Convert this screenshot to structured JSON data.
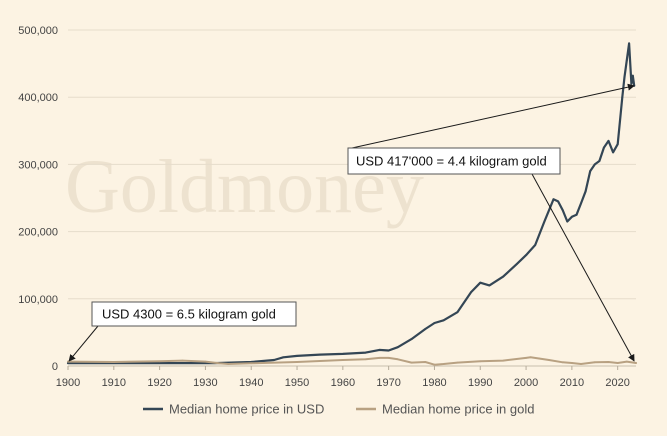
{
  "colors": {
    "background": "#fcf3e3",
    "grid": "#e6dccb",
    "usd_line": "#344655",
    "gold_line": "#b8a182",
    "arrow": "#1a1a1a"
  },
  "watermark": "Goldmoney",
  "chart_data": {
    "type": "line",
    "title": "",
    "xlabel": "",
    "ylabel": "",
    "xlim": [
      1900,
      2024
    ],
    "ylim": [
      0,
      500000
    ],
    "grid": true,
    "legend_position": "bottom",
    "x_ticks": [
      1900,
      1910,
      1920,
      1930,
      1940,
      1950,
      1960,
      1970,
      1980,
      1990,
      2000,
      2010,
      2020
    ],
    "x_tick_labels": [
      "1900",
      "1910",
      "1920",
      "1930",
      "1940",
      "1950",
      "1960",
      "1970",
      "1980",
      "1990",
      "2000",
      "2010",
      "2020"
    ],
    "y_ticks": [
      0,
      100000,
      200000,
      300000,
      400000,
      500000
    ],
    "y_tick_labels": [
      "0",
      "100,000",
      "200,000",
      "300,000",
      "400,000",
      "500,000"
    ],
    "series": [
      {
        "name": "Median home price in USD",
        "color": "#344655",
        "x": [
          1900,
          1932,
          1940,
          1945,
          1947,
          1950,
          1955,
          1960,
          1965,
          1968,
          1970,
          1972,
          1975,
          1978,
          1980,
          1982,
          1985,
          1988,
          1990,
          1992,
          1995,
          1998,
          2000,
          2002,
          2004,
          2006,
          2007,
          2008,
          2009,
          2010,
          2011,
          2012,
          2013,
          2014,
          2015,
          2016,
          2017,
          2018,
          2019,
          2020,
          2021,
          2021.5,
          2022,
          2022.5,
          2023,
          2023.3,
          2023.6
        ],
        "values": [
          4300,
          4300,
          6000,
          9000,
          13000,
          15000,
          17000,
          18000,
          20000,
          24000,
          23000,
          28000,
          40000,
          55000,
          64000,
          68000,
          80000,
          110000,
          124000,
          120000,
          133000,
          152000,
          165000,
          180000,
          215000,
          248000,
          245000,
          232000,
          215000,
          222000,
          225000,
          242000,
          260000,
          290000,
          300000,
          305000,
          325000,
          335000,
          318000,
          330000,
          400000,
          430000,
          455000,
          480000,
          420000,
          432000,
          417000
        ]
      },
      {
        "name": "Median home price in gold",
        "color": "#b8a182",
        "x": [
          1900,
          1910,
          1920,
          1925,
          1930,
          1933,
          1935,
          1940,
          1950,
          1960,
          1965,
          1968,
          1970,
          1972,
          1975,
          1978,
          1980,
          1982,
          1985,
          1990,
          1995,
          2000,
          2001,
          2003,
          2005,
          2008,
          2010,
          2012,
          2015,
          2018,
          2020,
          2022,
          2024
        ],
        "values": [
          6500,
          6000,
          7000,
          8000,
          6500,
          4000,
          3000,
          4000,
          6000,
          9000,
          10000,
          12000,
          12000,
          10000,
          5000,
          6000,
          2000,
          3000,
          5000,
          7000,
          8000,
          12000,
          13000,
          11000,
          9000,
          5500,
          4500,
          3000,
          5500,
          6000,
          4500,
          6500,
          4400
        ]
      }
    ],
    "annotations": [
      {
        "text": "USD 4300 = 6.5 kilogram gold",
        "points_to": {
          "x": 1900,
          "y": 4300
        }
      },
      {
        "text": "USD 417'000 = 4.4 kilogram gold",
        "points_to": [
          {
            "x": 2023.6,
            "y": 417000
          },
          {
            "x": 2023.6,
            "y": 4400
          }
        ]
      }
    ]
  }
}
